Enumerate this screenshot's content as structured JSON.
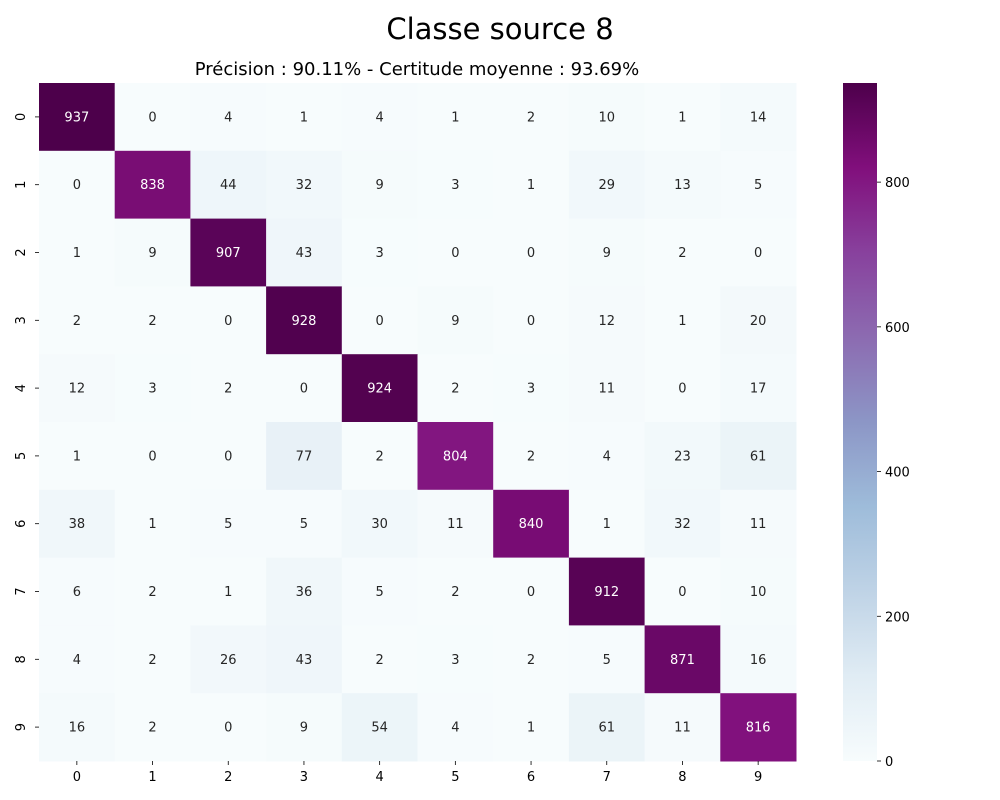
{
  "chart_data": {
    "type": "heatmap",
    "title": "Classe source 8",
    "subtitle": "Précision : 90.11% - Certitude moyenne : 93.69%",
    "xlabel": "",
    "ylabel": "",
    "x_categories": [
      "0",
      "1",
      "2",
      "3",
      "4",
      "5",
      "6",
      "7",
      "8",
      "9"
    ],
    "y_categories": [
      "0",
      "1",
      "2",
      "3",
      "4",
      "5",
      "6",
      "7",
      "8",
      "9"
    ],
    "values": [
      [
        937,
        0,
        4,
        1,
        4,
        1,
        2,
        10,
        1,
        14
      ],
      [
        0,
        838,
        44,
        32,
        9,
        3,
        1,
        29,
        13,
        5
      ],
      [
        1,
        9,
        907,
        43,
        3,
        0,
        0,
        9,
        2,
        0
      ],
      [
        2,
        2,
        0,
        928,
        0,
        9,
        0,
        12,
        1,
        20
      ],
      [
        12,
        3,
        2,
        0,
        924,
        2,
        3,
        11,
        0,
        17
      ],
      [
        1,
        0,
        0,
        77,
        2,
        804,
        2,
        4,
        23,
        61
      ],
      [
        38,
        1,
        5,
        5,
        30,
        11,
        840,
        1,
        32,
        11
      ],
      [
        6,
        2,
        1,
        36,
        5,
        2,
        0,
        912,
        0,
        10
      ],
      [
        4,
        2,
        26,
        43,
        2,
        3,
        2,
        5,
        871,
        16
      ],
      [
        16,
        2,
        0,
        9,
        54,
        4,
        1,
        61,
        11,
        816
      ]
    ],
    "colorbar": {
      "min": 0,
      "max": 937,
      "ticks": [
        0,
        200,
        400,
        600,
        800
      ]
    },
    "colormap": "BuPu",
    "colormap_stops": [
      "#f7fcfd",
      "#e0ecf4",
      "#bfd3e6",
      "#9ebcda",
      "#8c96c6",
      "#8c6bb1",
      "#88419d",
      "#810f7c",
      "#4d004b"
    ],
    "text_colors": {
      "dark": "#262626",
      "light": "#ffffff"
    },
    "grid": false
  }
}
